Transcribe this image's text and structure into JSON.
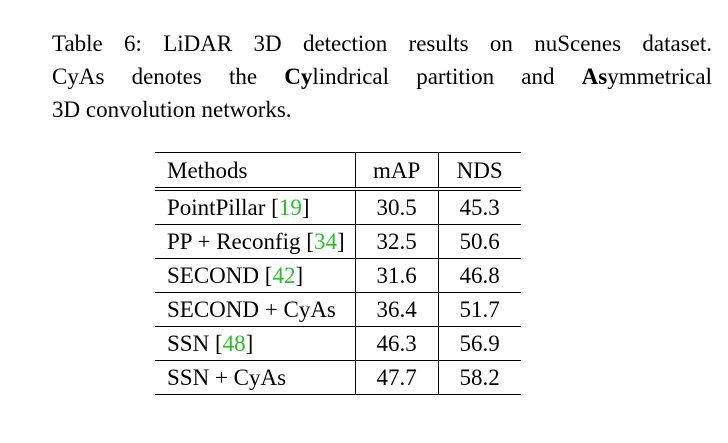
{
  "caption": {
    "line1": "Table 6: LiDAR 3D detection results on nuScenes dataset.",
    "line2": {
      "t1": "CyAs denotes the ",
      "b1": "Cy",
      "t2": "lindrical partition and ",
      "b2": "As",
      "t3": "ymmetrical"
    },
    "line3": "3D convolution networks."
  },
  "table": {
    "headers": [
      "Methods",
      "mAP",
      "NDS"
    ],
    "rows": [
      {
        "method": "PointPillar ",
        "ref": "19",
        "mAP": "30.5",
        "NDS": "45.3"
      },
      {
        "method": "PP + Reconfig ",
        "ref": "34",
        "mAP": "32.5",
        "NDS": "50.6"
      },
      {
        "method": "SECOND ",
        "ref": "42",
        "mAP": "31.6",
        "NDS": "46.8"
      },
      {
        "method": "SECOND + CyAs",
        "ref": "",
        "mAP": "36.4",
        "NDS": "51.7"
      },
      {
        "method": "SSN ",
        "ref": "48",
        "mAP": "46.3",
        "NDS": "56.9"
      },
      {
        "method": "SSN + CyAs",
        "ref": "",
        "mAP": "47.7",
        "NDS": "58.2"
      }
    ]
  },
  "colors": {
    "citation": "#22c322",
    "text": "#000000"
  }
}
